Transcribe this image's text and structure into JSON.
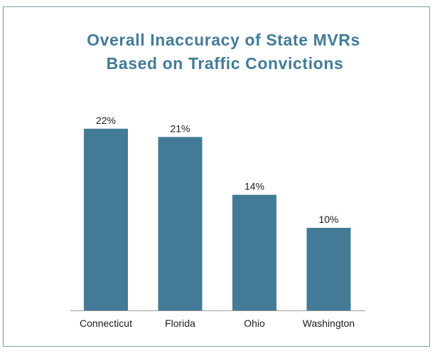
{
  "chart_data": {
    "type": "bar",
    "title_line1": "Overall Inaccuracy of State MVRs",
    "title_line2": "Based on  Traffic Convictions",
    "categories": [
      "Connecticut",
      "Florida",
      "Ohio",
      "Washington"
    ],
    "values": [
      22,
      21,
      14,
      10
    ],
    "value_labels": [
      "22%",
      "21%",
      "14%",
      "10%"
    ],
    "ylim": [
      0,
      25
    ],
    "grid": false,
    "legend": "none",
    "bar_color": "#437b96",
    "title_color": "#437b96",
    "frame_color": "#7f9aa6"
  }
}
